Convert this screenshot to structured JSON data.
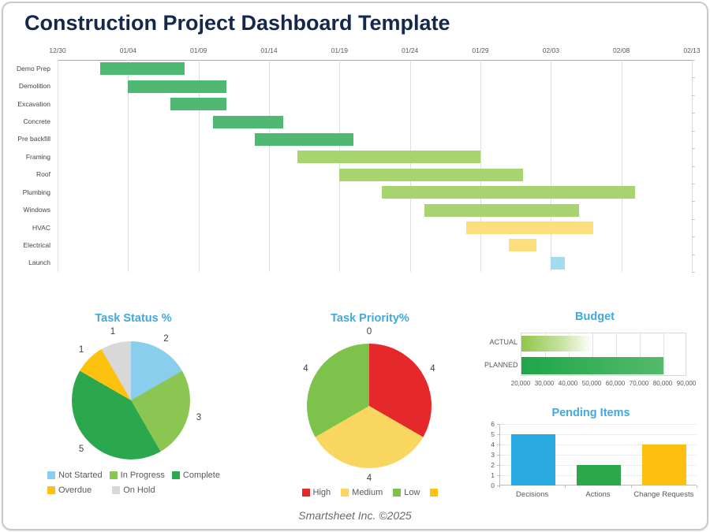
{
  "page": {
    "title": "Construction Project Dashboard Template",
    "footer": "Smartsheet Inc. ©2025"
  },
  "colors": {
    "title_navy": "#14284b",
    "chart_title_blue": "#41a9dc",
    "axis_gray": "#a8a8a8",
    "gridline_gray": "#dedede"
  },
  "chart_data": [
    {
      "id": "gantt",
      "type": "gantt",
      "axis_dates": [
        "12/30",
        "01/04",
        "01/09",
        "01/14",
        "01/19",
        "01/24",
        "01/29",
        "02/03",
        "02/08",
        "02/13"
      ],
      "axis_day_span": 45,
      "tasks": [
        {
          "name": "Demo Prep",
          "start": "01/02",
          "end": "01/08",
          "start_day": 3,
          "end_day": 9,
          "color": "#4fb873"
        },
        {
          "name": "Demolition",
          "start": "01/04",
          "end": "01/11",
          "start_day": 5,
          "end_day": 12,
          "color": "#4fb873"
        },
        {
          "name": "Excavation",
          "start": "01/07",
          "end": "01/11",
          "start_day": 8,
          "end_day": 12,
          "color": "#4fb873"
        },
        {
          "name": "Concrete",
          "start": "01/10",
          "end": "01/15",
          "start_day": 11,
          "end_day": 16,
          "color": "#4fb873"
        },
        {
          "name": "Pre backfill",
          "start": "01/13",
          "end": "01/20",
          "start_day": 14,
          "end_day": 21,
          "color": "#4fb873"
        },
        {
          "name": "Framing",
          "start": "01/16",
          "end": "01/29",
          "start_day": 17,
          "end_day": 30,
          "color": "#a8d470"
        },
        {
          "name": "Roof",
          "start": "01/19",
          "end": "02/01",
          "start_day": 20,
          "end_day": 33,
          "color": "#a8d470"
        },
        {
          "name": "Plumbing",
          "start": "01/22",
          "end": "02/09",
          "start_day": 23,
          "end_day": 41,
          "color": "#a8d470"
        },
        {
          "name": "Windows",
          "start": "01/25",
          "end": "02/05",
          "start_day": 26,
          "end_day": 37,
          "color": "#a8d470"
        },
        {
          "name": "HVAC",
          "start": "01/28",
          "end": "02/06",
          "start_day": 29,
          "end_day": 38,
          "color": "#fcdf7d"
        },
        {
          "name": "Electrical",
          "start": "02/01",
          "end": "02/03",
          "start_day": 32,
          "end_day": 34,
          "color": "#fcdf7d"
        },
        {
          "name": "Launch",
          "start": "02/04",
          "end": "02/05",
          "start_day": 35,
          "end_day": 36,
          "color": "#a3dcef"
        }
      ]
    },
    {
      "id": "task-status",
      "type": "pie",
      "title": "Task Status %",
      "slices": [
        {
          "label": "Not Started",
          "value": 2,
          "color": "#89ceec"
        },
        {
          "label": "In Progress",
          "value": 3,
          "color": "#8cc652"
        },
        {
          "label": "Complete",
          "value": 5,
          "color": "#2ba84d"
        },
        {
          "label": "Overdue",
          "value": 1,
          "color": "#fdc20f"
        },
        {
          "label": "On Hold",
          "value": 1,
          "color": "#d8d8d8"
        }
      ]
    },
    {
      "id": "task-priority",
      "type": "pie",
      "title": "Task Priority%",
      "slices": [
        {
          "label": "High",
          "value": 4,
          "color": "#e5292b"
        },
        {
          "label": "Medium",
          "value": 4,
          "color": "#f9d65f"
        },
        {
          "label": "Low",
          "value": 4,
          "color": "#7cc24b"
        },
        {
          "label": "",
          "value": 0,
          "color": "#fdc20f"
        }
      ]
    },
    {
      "id": "budget",
      "type": "bar-horizontal",
      "title": "Budget",
      "categories": [
        "ACTUAL",
        "PLANNED"
      ],
      "values": [
        50000,
        80000
      ],
      "axis": {
        "min": 20000,
        "max": 90000,
        "tick_step": 10000,
        "tick_labels": [
          "20,000",
          "30,000",
          "40,000",
          "50,000",
          "60,000",
          "70,000",
          "80,000",
          "90,000"
        ]
      },
      "bar_styles": {
        "actual_gradient": [
          "#8fc646",
          "#c6e2a0",
          "#ffffff"
        ],
        "planned_gradient": [
          "#1ea64a",
          "#55ba6c"
        ]
      }
    },
    {
      "id": "pending",
      "type": "bar",
      "title": "Pending Items",
      "categories": [
        "Decisions",
        "Actions",
        "Change Requests"
      ],
      "values": [
        5,
        2,
        4
      ],
      "colors": [
        "#29abe2",
        "#2ba84a",
        "#fdc010"
      ],
      "ylim": [
        0,
        6
      ],
      "yticks": [
        0,
        1,
        2,
        3,
        4,
        5,
        6
      ]
    }
  ]
}
